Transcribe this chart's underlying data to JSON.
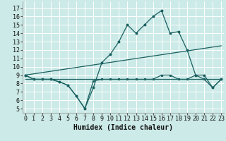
{
  "xlabel": "Humidex (Indice chaleur)",
  "bg_color": "#cceae7",
  "grid_color": "#ffffff",
  "line_color": "#1a6060",
  "x_ticks": [
    0,
    1,
    2,
    3,
    4,
    5,
    6,
    7,
    8,
    9,
    10,
    11,
    12,
    13,
    14,
    15,
    16,
    17,
    18,
    19,
    20,
    21,
    22,
    23
  ],
  "y_ticks": [
    5,
    6,
    7,
    8,
    9,
    10,
    11,
    12,
    13,
    14,
    15,
    16,
    17
  ],
  "ylim": [
    4.5,
    17.8
  ],
  "xlim": [
    -0.3,
    23.3
  ],
  "line1_x": [
    0,
    1,
    2,
    3,
    4,
    5,
    6,
    7,
    8,
    9,
    10,
    11,
    12,
    13,
    14,
    15,
    16,
    17,
    18,
    19,
    20,
    21,
    22,
    23
  ],
  "line1_y": [
    9.0,
    8.5,
    8.5,
    8.5,
    8.2,
    7.8,
    6.5,
    5.0,
    7.5,
    10.5,
    11.5,
    13.0,
    15.0,
    14.0,
    15.0,
    16.0,
    16.7,
    14.0,
    14.2,
    12.0,
    9.0,
    9.0,
    7.5,
    8.5
  ],
  "line2_x": [
    0,
    23
  ],
  "line2_y": [
    9.0,
    12.5
  ],
  "line3_x": [
    0,
    23
  ],
  "line3_y": [
    8.5,
    8.5
  ],
  "line4_x": [
    0,
    1,
    2,
    3,
    4,
    5,
    6,
    7,
    8,
    9,
    10,
    11,
    12,
    13,
    14,
    15,
    16,
    17,
    18,
    19,
    20,
    21,
    22,
    23
  ],
  "line4_y": [
    9.0,
    8.5,
    8.5,
    8.5,
    8.2,
    7.8,
    6.5,
    5.0,
    8.3,
    8.5,
    8.5,
    8.5,
    8.5,
    8.5,
    8.5,
    8.5,
    9.0,
    9.0,
    8.5,
    8.5,
    9.0,
    8.5,
    7.5,
    8.5
  ],
  "marker_size": 4,
  "linewidth": 0.9,
  "font_size_label": 7,
  "font_size_tick": 6
}
